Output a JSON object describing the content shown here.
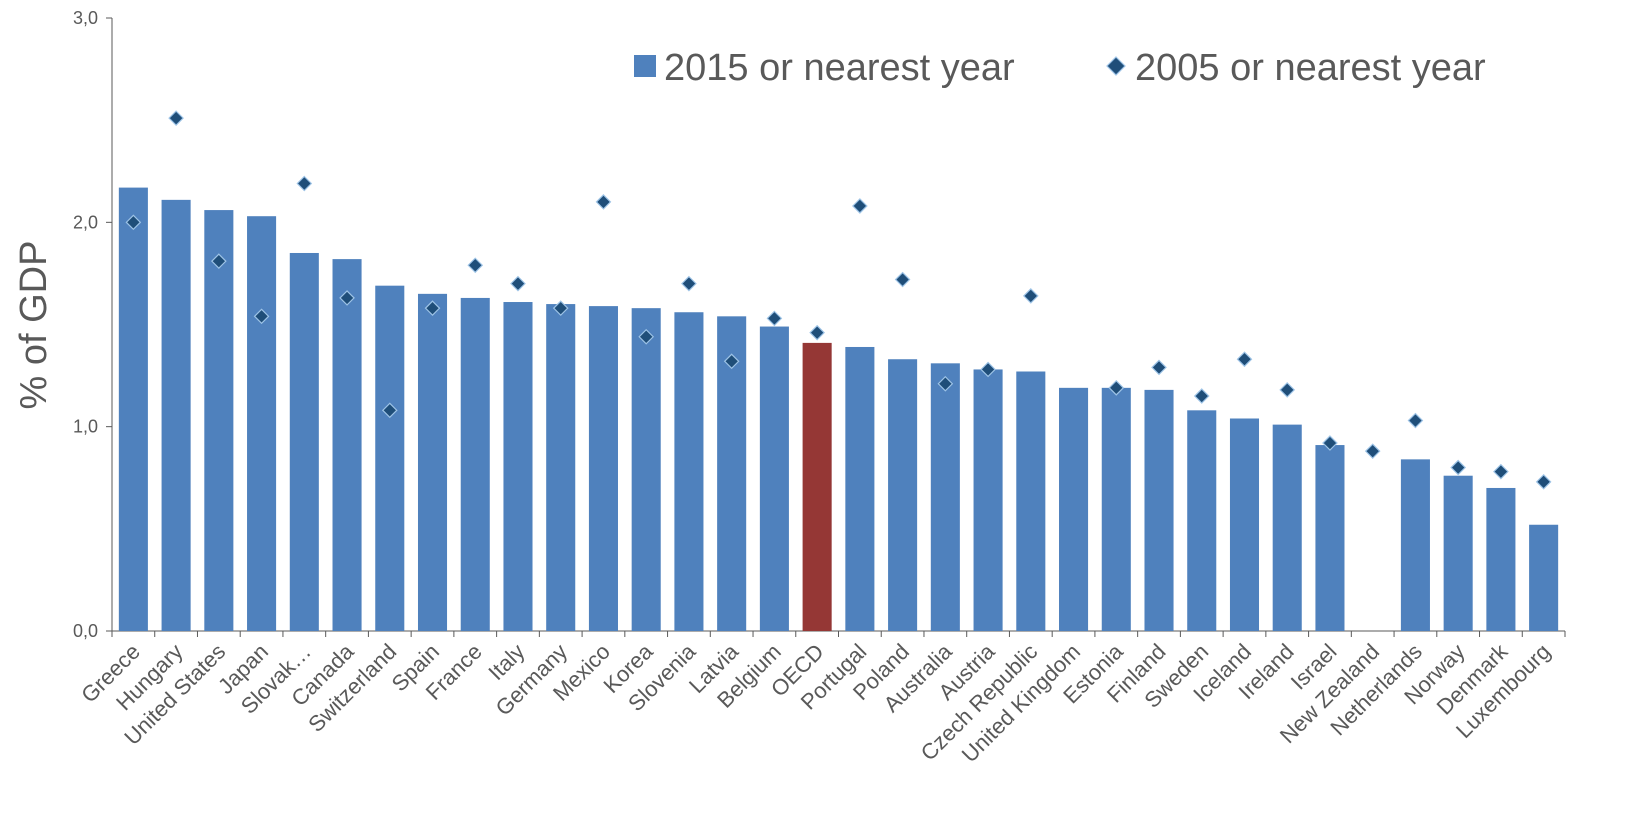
{
  "chart_data": {
    "type": "bar",
    "title": "",
    "ylabel": "% of GDP",
    "xlabel": "",
    "ylim": [
      0,
      3
    ],
    "yticks": [
      0,
      1,
      2,
      3
    ],
    "ytick_labels": [
      "0,0",
      "1,0",
      "2,0",
      "3,0"
    ],
    "legend_position": "top-right",
    "categories": [
      "Greece",
      "Hungary",
      "United States",
      "Japan",
      "Slovak…",
      "Canada",
      "Switzerland",
      "Spain",
      "France",
      "Italy",
      "Germany",
      "Mexico",
      "Korea",
      "Slovenia",
      "Latvia",
      "Belgium",
      "OECD",
      "Portugal",
      "Poland",
      "Australia",
      "Austria",
      "Czech Republic",
      "United Kingdom",
      "Estonia",
      "Finland",
      "Sweden",
      "Iceland",
      "Ireland",
      "Israel",
      "New Zealand",
      "Netherlands",
      "Norway",
      "Denmark",
      "Luxembourg"
    ],
    "highlight_category": "OECD",
    "colors": {
      "bar": "#4F81BD",
      "highlight": "#953735",
      "marker": "#1F4E79",
      "marker_stroke": "#9DC3E6",
      "axis": "#595959",
      "text": "#595959"
    },
    "series": [
      {
        "name": "2015 or nearest year",
        "kind": "bar",
        "values": [
          2.17,
          2.11,
          2.06,
          2.03,
          1.85,
          1.82,
          1.69,
          1.65,
          1.63,
          1.61,
          1.6,
          1.59,
          1.58,
          1.56,
          1.54,
          1.49,
          1.41,
          1.39,
          1.33,
          1.31,
          1.28,
          1.27,
          1.19,
          1.19,
          1.18,
          1.08,
          1.04,
          1.01,
          0.91,
          null,
          0.84,
          0.76,
          0.7,
          0.52
        ]
      },
      {
        "name": "2005 or nearest year",
        "kind": "marker",
        "values": [
          2.0,
          2.51,
          1.81,
          1.54,
          2.19,
          1.63,
          1.08,
          1.58,
          1.79,
          1.7,
          1.58,
          2.1,
          1.44,
          1.7,
          1.32,
          1.53,
          1.46,
          2.08,
          1.72,
          1.21,
          1.28,
          1.64,
          null,
          1.19,
          1.29,
          1.15,
          1.33,
          1.18,
          0.92,
          0.88,
          1.03,
          0.8,
          0.78,
          0.73
        ]
      }
    ]
  }
}
